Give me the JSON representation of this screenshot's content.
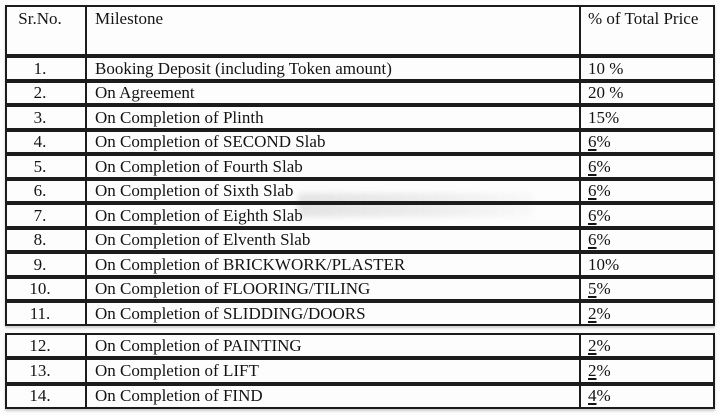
{
  "page": {
    "background_color": "#fdfdfd",
    "text_color": "#141414",
    "border_color": "#1c1c1c"
  },
  "table": {
    "header": {
      "sr": "Sr.No.",
      "milestone": "Milestone",
      "pct": "% of Total Price"
    },
    "sections": [
      {
        "rows": [
          {
            "sr": "1.",
            "milestone": "Booking Deposit (including Token amount)",
            "pct": "10 %",
            "underline": false
          },
          {
            "sr": "2.",
            "milestone": "On Agreement",
            "pct": "20 %",
            "underline": false
          },
          {
            "sr": "3.",
            "milestone": "On Completion of Plinth",
            "pct": "15%",
            "underline": false
          },
          {
            "sr": "4.",
            "milestone": "On Completion of SECOND Slab",
            "pct": "6%",
            "underline": true
          },
          {
            "sr": "5.",
            "milestone": "On Completion of Fourth Slab",
            "pct": "6%",
            "underline": true
          },
          {
            "sr": "6.",
            "milestone": "On Completion of Sixth Slab",
            "pct": "6%",
            "underline": true
          },
          {
            "sr": "7.",
            "milestone": "On Completion of Eighth Slab",
            "pct": "6%",
            "underline": true
          },
          {
            "sr": "8.",
            "milestone": "On Completion of Elventh Slab",
            "pct": "6%",
            "underline": true
          },
          {
            "sr": "9.",
            "milestone": "On Completion of BRICKWORK/PLASTER",
            "pct": "10%",
            "underline": false
          },
          {
            "sr": "10.",
            "milestone": "On Completion of FLOORING/TILING",
            "pct": "5%",
            "underline": true
          },
          {
            "sr": "11.",
            "milestone": "On Completion of SLIDDING/DOORS",
            "pct": "2%",
            "underline": true
          }
        ]
      },
      {
        "rows": [
          {
            "sr": "12.",
            "milestone": "On Completion of PAINTING",
            "pct": "2%",
            "underline": true
          },
          {
            "sr": "13.",
            "milestone": "On Completion of LIFT",
            "pct": "2%",
            "underline": true
          },
          {
            "sr": "14.",
            "milestone": "On Completion of FIND",
            "pct": "4%",
            "underline": true
          }
        ]
      }
    ]
  }
}
